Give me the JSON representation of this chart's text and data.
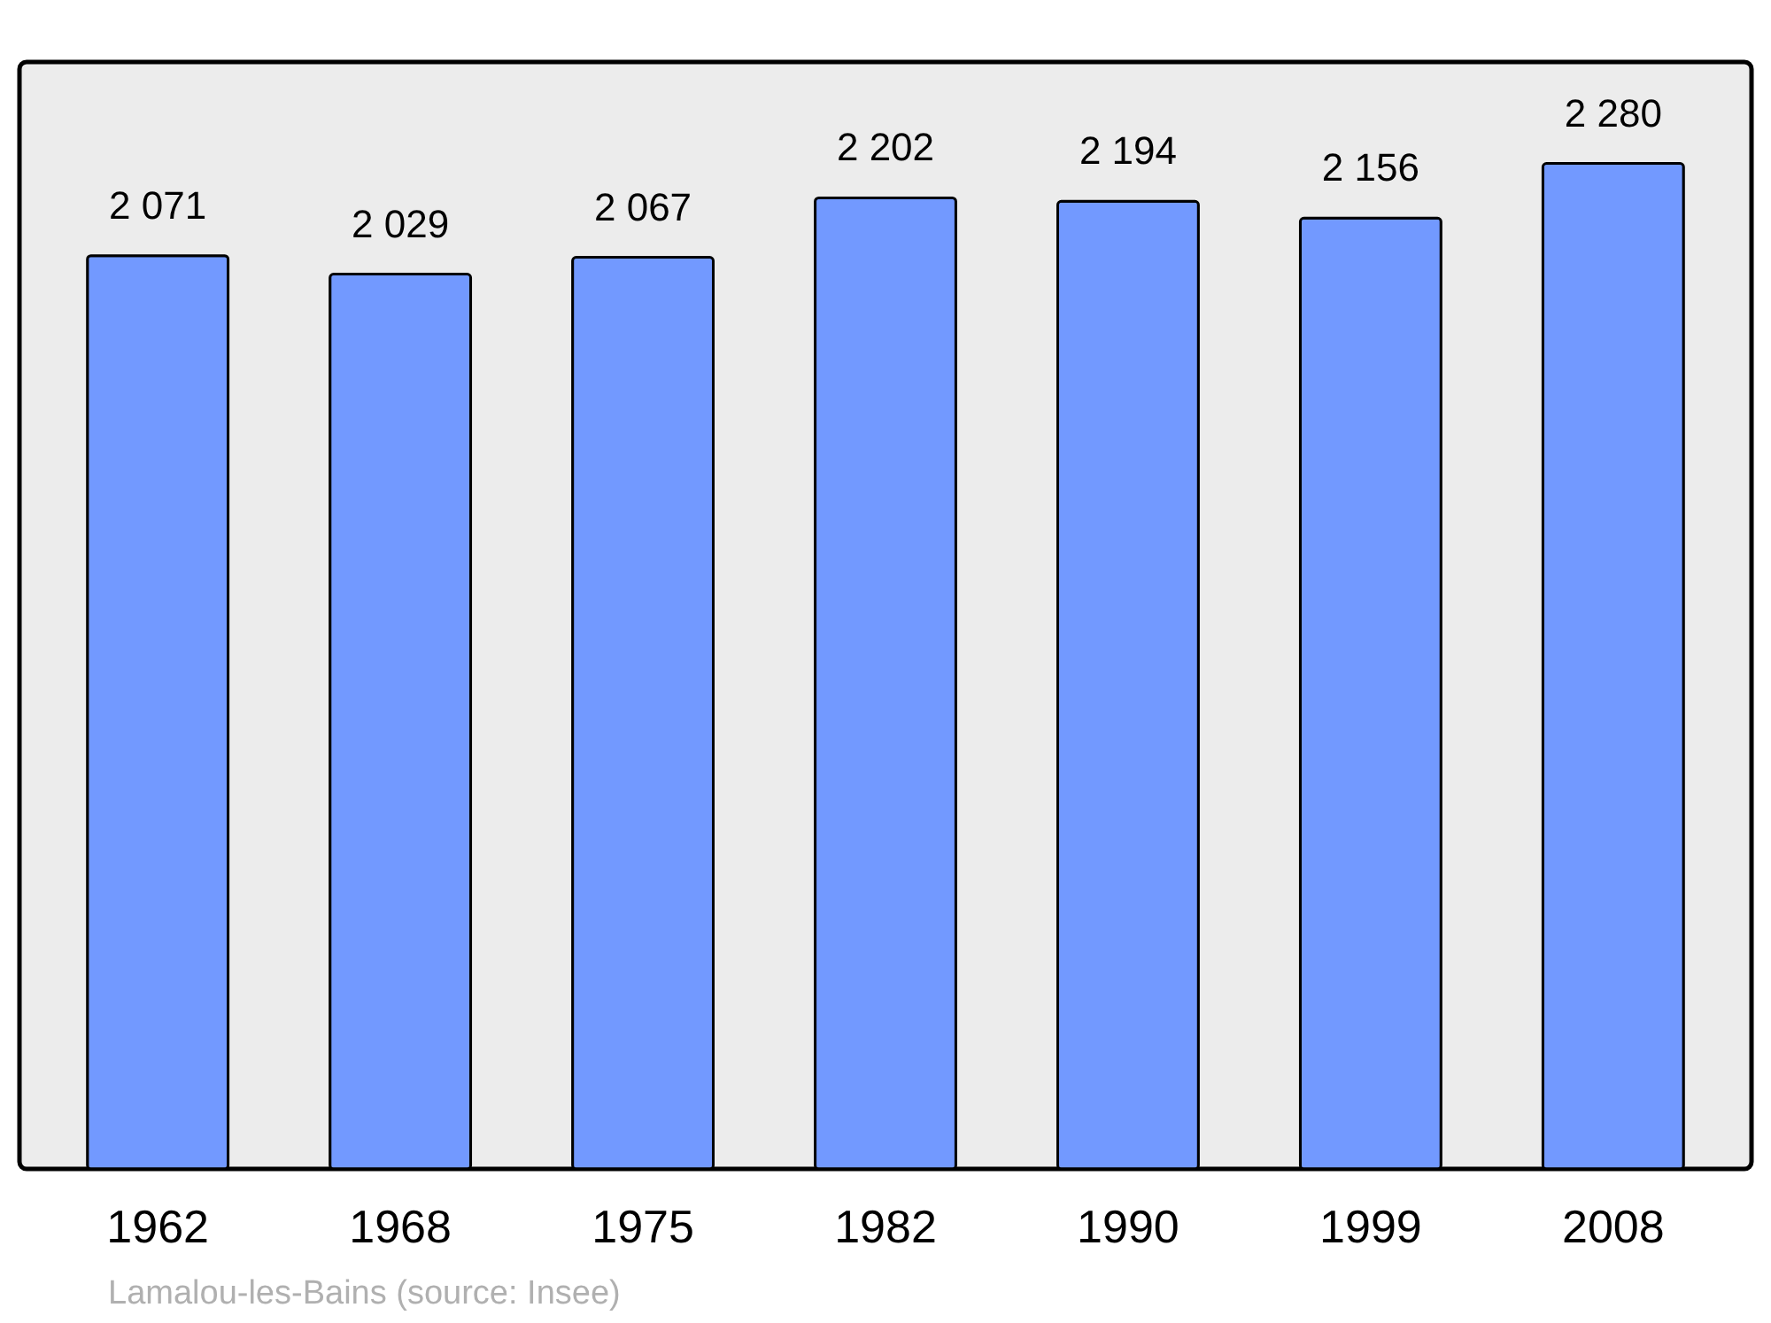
{
  "chart_data": {
    "type": "bar",
    "categories": [
      "1962",
      "1968",
      "1975",
      "1982",
      "1990",
      "1999",
      "2008"
    ],
    "values": [
      2071,
      2029,
      2067,
      2202,
      2194,
      2156,
      2280
    ],
    "value_labels": [
      "2 071",
      "2 029",
      "2 067",
      "2 202",
      "2 194",
      "2 156",
      "2 280"
    ],
    "color": "#7299ff",
    "ylim": [
      0,
      2510
    ],
    "grid": false,
    "annotations": [
      "Lamalou-les-Bains    (source: Insee)"
    ]
  }
}
